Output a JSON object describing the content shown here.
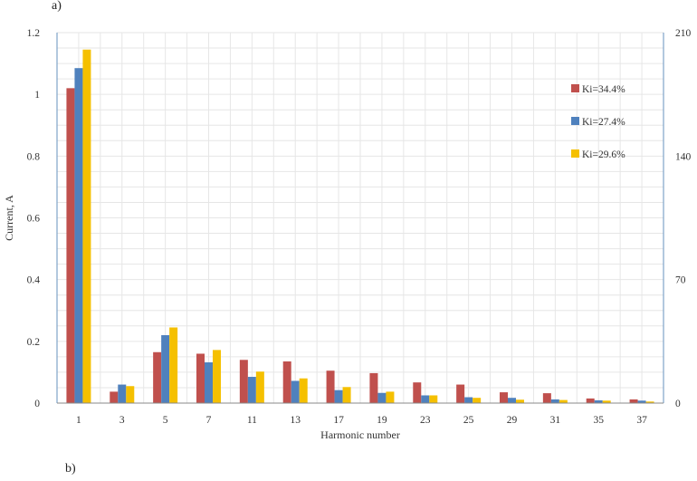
{
  "panel_labels": {
    "top": "a)",
    "bottom": "b)"
  },
  "chart_data": {
    "type": "bar",
    "categories": [
      "1",
      "3",
      "5",
      "7",
      "11",
      "13",
      "17",
      "19",
      "23",
      "25",
      "29",
      "31",
      "35",
      "37"
    ],
    "series": [
      {
        "name": "Ki=34.4%",
        "color": "#c0504d",
        "values": [
          1.02,
          0.037,
          0.165,
          0.16,
          0.14,
          0.135,
          0.105,
          0.097,
          0.067,
          0.06,
          0.035,
          0.032,
          0.015,
          0.012
        ]
      },
      {
        "name": "Ki=27.4%",
        "color": "#4f81bd",
        "values": [
          1.085,
          0.06,
          0.22,
          0.132,
          0.085,
          0.072,
          0.042,
          0.033,
          0.025,
          0.019,
          0.017,
          0.012,
          0.009,
          0.008
        ]
      },
      {
        "name": "Ki=29.6%",
        "color": "#f5c000",
        "values": [
          1.145,
          0.055,
          0.245,
          0.172,
          0.102,
          0.08,
          0.052,
          0.037,
          0.025,
          0.017,
          0.011,
          0.01,
          0.008,
          0.005
        ]
      }
    ],
    "xlabel": "Harmonic number",
    "ylabel": "Current, A",
    "ylim": [
      0,
      1.2
    ],
    "yticks": [
      "0",
      "0.2",
      "0.4",
      "0.6",
      "0.8",
      "1",
      "1.2"
    ],
    "y2ticks": [
      "0",
      "70",
      "140",
      "210"
    ],
    "grid": true,
    "legend": "right"
  }
}
